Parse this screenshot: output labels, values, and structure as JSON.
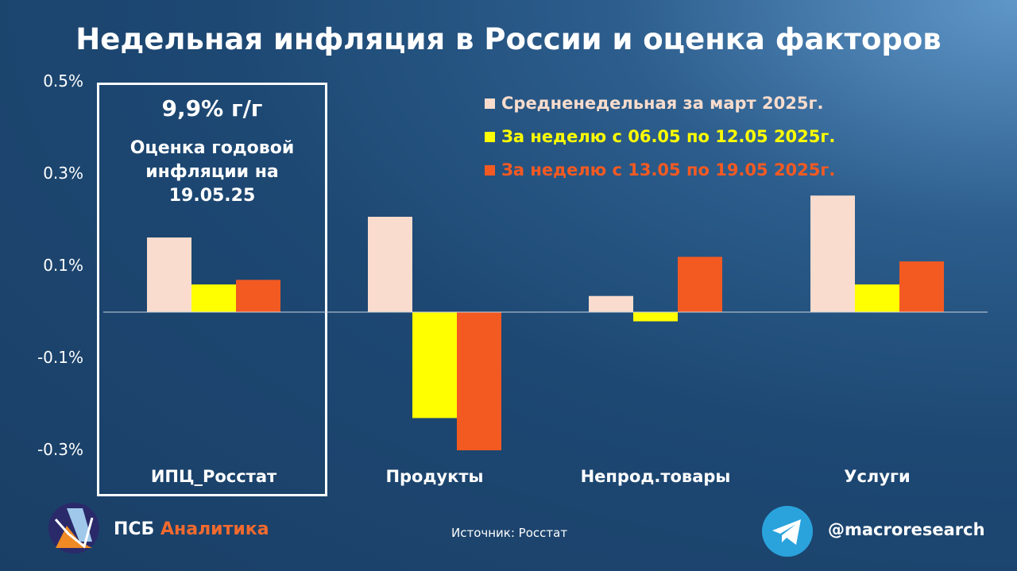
{
  "chart_data": {
    "type": "bar",
    "title": "Недельная инфляция в России и оценка факторов",
    "categories": [
      "ИПЦ_Росстат",
      "Продукты",
      "Непрод.товары",
      "Услуги"
    ],
    "series": [
      {
        "name": "Средненедельная за март 2025г.",
        "color": "#f9dccd",
        "values": [
          0.162,
          0.207,
          0.035,
          0.253
        ]
      },
      {
        "name": "За неделю с 06.05 по 12.05 2025г.",
        "color": "#ffff00",
        "values": [
          0.06,
          -0.23,
          -0.02,
          0.06
        ]
      },
      {
        "name": "За неделю с 13.05 по 19.05 2025г.",
        "color": "#f35a22",
        "values": [
          0.07,
          -0.3,
          0.12,
          0.11
        ]
      }
    ],
    "yticks": [
      "0.5%",
      "0.3%",
      "0.1%",
      "-0.1%",
      "-0.3%"
    ],
    "ytick_values": [
      0.5,
      0.3,
      0.1,
      -0.1,
      -0.3
    ],
    "ylim": [
      -0.3,
      0.5
    ],
    "legend_position": "top-right",
    "annotation": {
      "yoy": "9,9% г/г",
      "text_lines": [
        "Оценка годовой",
        "инфляции на",
        "19.05.25"
      ]
    }
  },
  "footer": {
    "brand_a": "ПСБ",
    "brand_b": "Аналитика",
    "source": "Источник: Росстат",
    "handle": "@macroresearch"
  }
}
